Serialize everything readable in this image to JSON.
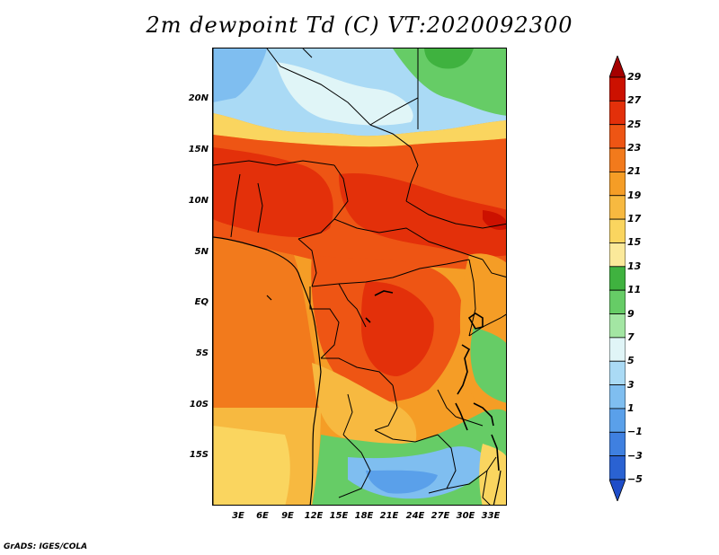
{
  "title": "2m dewpoint Td (C) VT:2020092300",
  "credit": "GrADS: IGES/COLA",
  "map": {
    "lat_labels": [
      "20N",
      "15N",
      "10N",
      "5N",
      "EQ",
      "5S",
      "10S",
      "15S"
    ],
    "lon_labels": [
      "3E",
      "6E",
      "9E",
      "12E",
      "15E",
      "18E",
      "21E",
      "24E",
      "27E",
      "30E",
      "33E"
    ],
    "lat_range": [
      -20,
      25
    ],
    "lon_range": [
      0,
      35
    ],
    "projection": "latlon",
    "features": [
      "coastlines",
      "country-borders",
      "lakes"
    ]
  },
  "colorbar": {
    "labels": [
      "29",
      "27",
      "25",
      "23",
      "21",
      "19",
      "17",
      "15",
      "13",
      "11",
      "9",
      "7",
      "5",
      "3",
      "1",
      "−1",
      "−3",
      "−5"
    ],
    "colors": [
      "#a50000",
      "#cc1100",
      "#e3300a",
      "#ee5514",
      "#f27a1c",
      "#f59d26",
      "#f7b940",
      "#fad55f",
      "#fbe99a",
      "#3fb23f",
      "#66cc66",
      "#a3e6a3",
      "#e0f5f7",
      "#aadaf5",
      "#7fbef0",
      "#5aa0ea",
      "#3f80e0",
      "#2a62d2",
      "#1f4dc8"
    ]
  }
}
